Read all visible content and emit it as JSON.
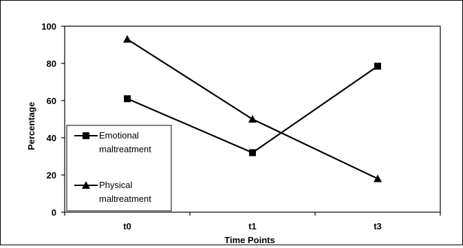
{
  "chart_data": {
    "type": "line",
    "title": "",
    "xlabel": "Time Points",
    "ylabel": "Percentage",
    "categories": [
      "t0",
      "t1",
      "t3"
    ],
    "ylim": [
      0,
      100
    ],
    "yticks": [
      0,
      20,
      40,
      60,
      80,
      100
    ],
    "grid": false,
    "legend_position": "bottom-left",
    "series": [
      {
        "name": "Emotional maltreatment",
        "name_lines": [
          "Emotional",
          "maltreatment"
        ],
        "marker": "square",
        "values": [
          61,
          32,
          78.5
        ]
      },
      {
        "name": "Physical maltreatment",
        "name_lines": [
          "Physical",
          "maltreatment"
        ],
        "marker": "triangle",
        "values": [
          93,
          50,
          18
        ]
      }
    ],
    "colors": {
      "line": "#000000",
      "plot_border": "#000000",
      "background": "#ffffff"
    }
  }
}
